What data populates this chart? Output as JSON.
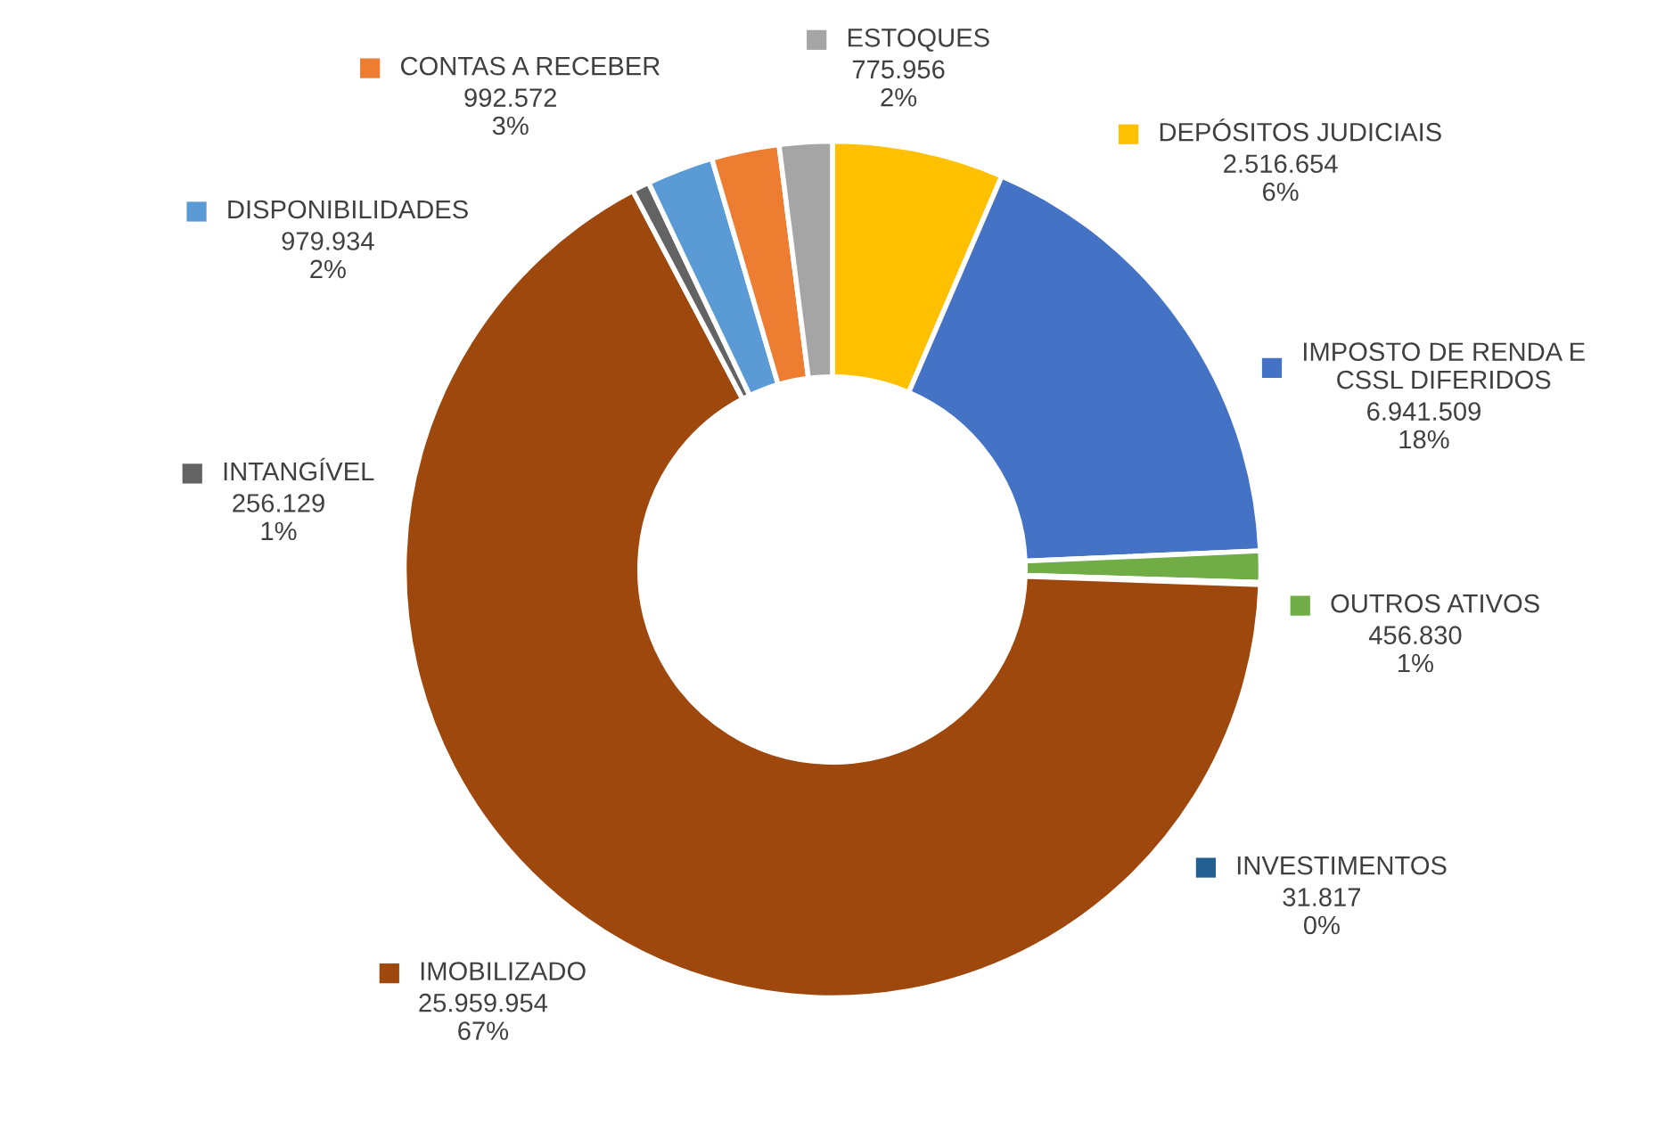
{
  "chart_data": {
    "type": "donut",
    "categories": [
      "DEPÓSITOS JUDICIAIS",
      "IMPOSTO DE RENDA E\nCSSL DIFERIDOS",
      "OUTROS ATIVOS",
      "INVESTIMENTOS",
      "IMOBILIZADO",
      "INTANGÍVEL",
      "DISPONIBILIDADES",
      "CONTAS A RECEBER",
      "ESTOQUES"
    ],
    "values": [
      2516654,
      6941509,
      456830,
      31817,
      25959954,
      256129,
      979934,
      992572,
      775956
    ],
    "value_labels": [
      "2.516.654\n6%",
      "6.941.509\n18%",
      "456.830\n1%",
      "31.817\n0%",
      "25.959.954\n67%",
      "256.129\n1%",
      "979.934\n2%",
      "992.572\n3%",
      "775.956\n2%"
    ],
    "legend": "right",
    "colors": [
      "#ffc000",
      "#4472c4",
      "#70ad47",
      "#255e91",
      "#9e480e",
      "#636363",
      "#5b9bd5",
      "#ed7d31",
      "#a5a5a5"
    ]
  }
}
